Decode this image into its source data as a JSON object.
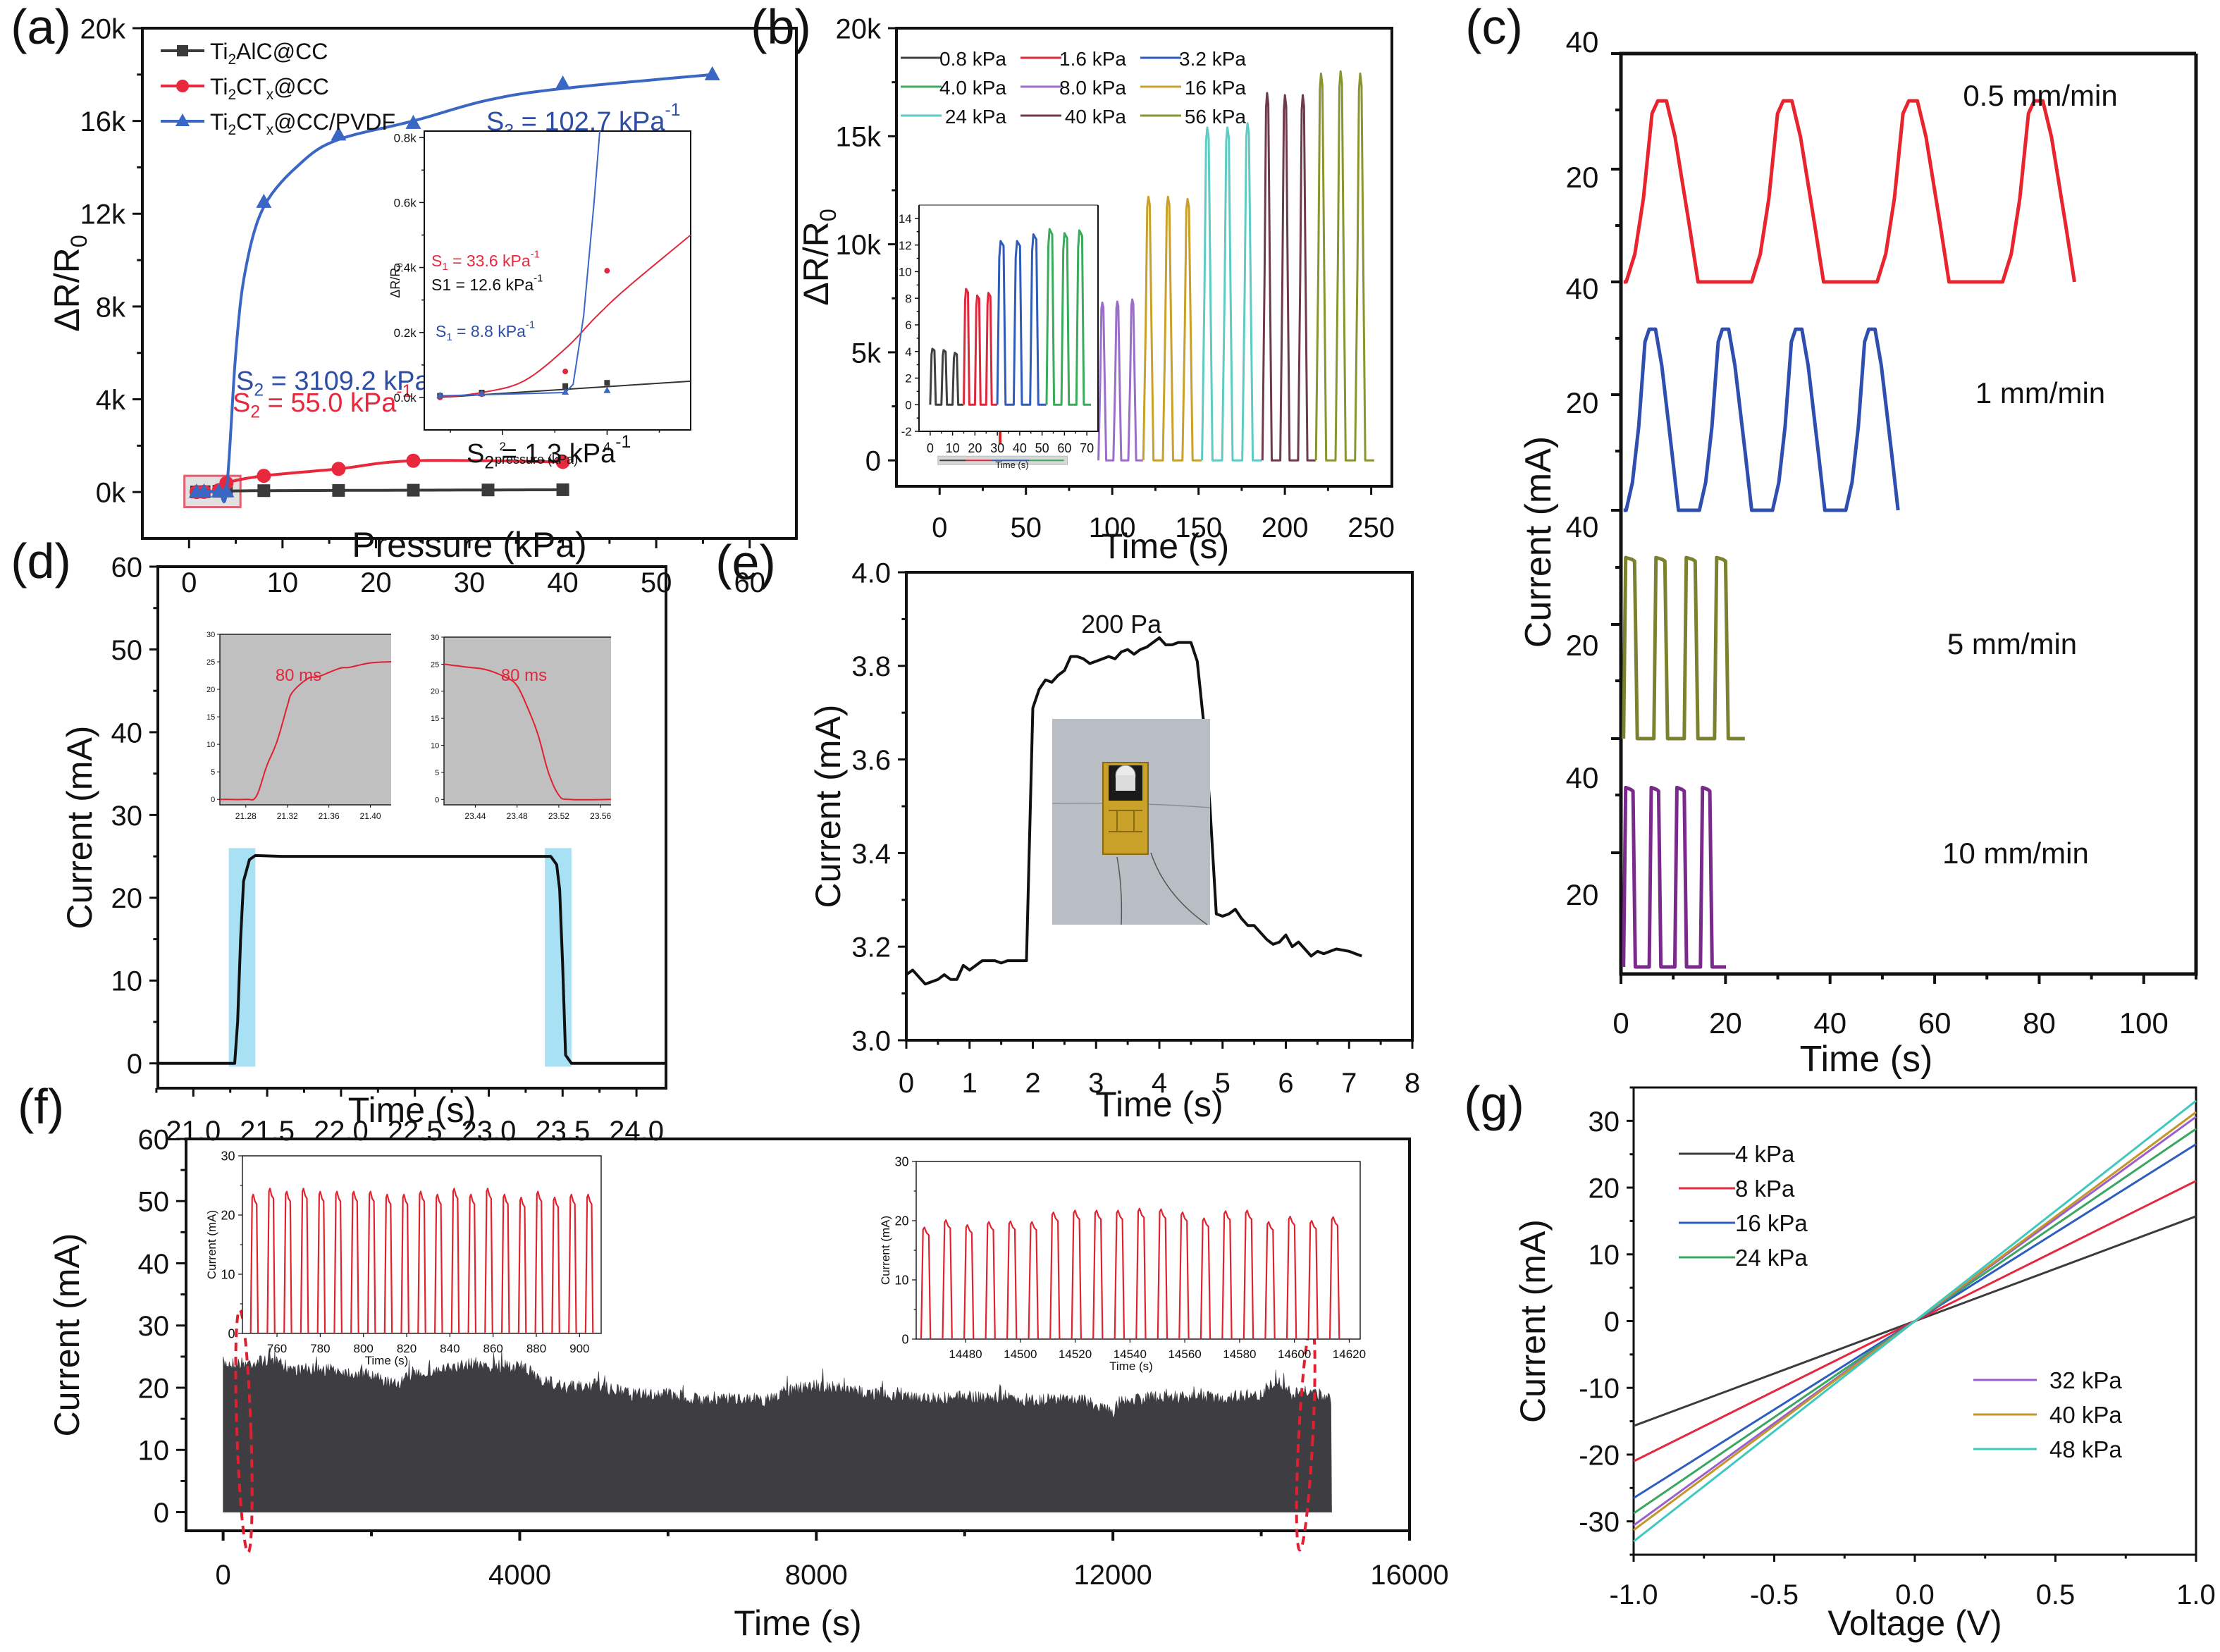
{
  "figure": {
    "panel_labels": [
      "(a)",
      "(b)",
      "(c)",
      "(d)",
      "(e)",
      "(f)",
      "(g)"
    ]
  },
  "chart_data": [
    {
      "id": "a",
      "type": "line",
      "panel_label": "(a)",
      "xlabel": "Pressure (kPa)",
      "ylabel": "ΔR/R0",
      "xlim": [
        -5,
        65
      ],
      "ylim": [
        -2000,
        20000
      ],
      "xticks": [
        0,
        10,
        20,
        30,
        40,
        50,
        60
      ],
      "yticks": [
        0,
        4000,
        8000,
        12000,
        16000,
        20000
      ],
      "ytick_labels": [
        "0k",
        "4k",
        "8k",
        "12k",
        "16k",
        "20k"
      ],
      "legend": "top-left",
      "series": [
        {
          "name": "Ti2AlC@CC",
          "color": "#3a3a3a",
          "marker": "square",
          "x": [
            0.8,
            1.6,
            3.2,
            4.0,
            8,
            16,
            24,
            32,
            40
          ],
          "y": [
            5,
            15,
            35,
            45,
            60,
            70,
            80,
            90,
            100
          ]
        },
        {
          "name": "Ti2CTx@CC",
          "color": "#e8283c",
          "marker": "circle",
          "x": [
            0.8,
            1.6,
            3.2,
            4.0,
            8,
            16,
            24,
            40
          ],
          "y": [
            0,
            10,
            80,
            390,
            700,
            1000,
            1350,
            1300
          ]
        },
        {
          "name": "Ti2CTx@CC/PVDF",
          "color": "#3a66c4",
          "marker": "triangle",
          "x": [
            0.8,
            1.6,
            3.2,
            4.0,
            8,
            16,
            24,
            40,
            56
          ],
          "y": [
            0,
            10,
            15,
            20,
            12500,
            15400,
            15900,
            17600,
            18000
          ]
        }
      ],
      "annotations": [
        {
          "text": "S3 = 102.7 kPa-1",
          "color": "#2e4ea3"
        },
        {
          "text": "S2 = 3109.2 kPa-1",
          "color": "#2e4ea3"
        },
        {
          "text": "S2 = 55.0 kPa-1",
          "color": "#e8283c"
        },
        {
          "text": "S2 = 1.3 kPa-1",
          "color": "#111111"
        }
      ],
      "inset": {
        "xlabel": "pressure (kPa)",
        "ylabel": "ΔR/R0",
        "xlim": [
          0.5,
          5.6
        ],
        "ylim": [
          -100,
          820
        ],
        "xticks": [
          2,
          4
        ],
        "yticks": [
          0,
          200,
          400,
          600,
          800
        ],
        "ytick_labels": [
          "0.0k",
          "0.2k",
          "0.4k",
          "0.6k",
          "0.8k"
        ],
        "annotations": [
          {
            "text": "S1 = 33.6 kPa-1",
            "color": "#e8283c"
          },
          {
            "text": "S1 = 12.6 kPa-1",
            "color": "#111111"
          },
          {
            "text": "S1 = 8.8 kPa-1",
            "color": "#2e4ea3"
          }
        ]
      }
    },
    {
      "id": "b",
      "type": "line",
      "panel_label": "(b)",
      "xlabel": "Time (s)",
      "ylabel": "ΔR/R0",
      "xlim": [
        -25,
        262
      ],
      "ylim": [
        -1200,
        20000
      ],
      "xticks": [
        0,
        50,
        100,
        150,
        200,
        250
      ],
      "yticks": [
        0,
        5000,
        10000,
        15000,
        20000
      ],
      "ytick_labels": [
        "0",
        "5k",
        "10k",
        "15k",
        "20k"
      ],
      "legend": "top",
      "series": [
        {
          "name": "0.8 kPa",
          "color": "#404040",
          "t_start": 0,
          "t_end": 15,
          "peaks": [
            4.2,
            4.1,
            3.9
          ]
        },
        {
          "name": "1.6 kPa",
          "color": "#e0283c",
          "t_start": 15,
          "t_end": 30,
          "peaks": [
            8.7,
            8.2,
            8.4
          ]
        },
        {
          "name": "3.2 kPa",
          "color": "#2f5cb8",
          "t_start": 30,
          "t_end": 52,
          "peaks": [
            12.3,
            12.3,
            12.8
          ]
        },
        {
          "name": "4.0 kPa",
          "color": "#3aaa5c",
          "t_start": 52,
          "t_end": 72,
          "peaks": [
            13.2,
            12.9,
            13.1
          ]
        },
        {
          "name": "8.0 kPa",
          "color": "#9b6fc9",
          "t_start": 92,
          "t_end": 118,
          "peaks": [
            7300,
            7350,
            7450
          ]
        },
        {
          "name": "16 kPa",
          "color": "#c9a02a",
          "t_start": 118,
          "t_end": 152,
          "peaks": [
            12200,
            12200,
            12100
          ]
        },
        {
          "name": "24 kPa",
          "color": "#5ecbc4",
          "t_start": 152,
          "t_end": 187,
          "peaks": [
            15400,
            15400,
            15600
          ]
        },
        {
          "name": "40 kPa",
          "color": "#6e3b4a",
          "t_start": 187,
          "t_end": 218,
          "peaks": [
            17000,
            16900,
            16900
          ]
        },
        {
          "name": "56 kPa",
          "color": "#8a9530",
          "t_start": 218,
          "t_end": 252,
          "peaks": [
            17900,
            18000,
            17900
          ]
        }
      ],
      "inset": {
        "xlabel": "Time (s)",
        "xlim": [
          -5,
          75
        ],
        "ylim": [
          -2,
          15
        ],
        "xticks": [
          0,
          10,
          20,
          30,
          40,
          50,
          60,
          70
        ],
        "yticks": [
          -2,
          0,
          2,
          4,
          6,
          8,
          10,
          12,
          14
        ]
      }
    },
    {
      "id": "c",
      "type": "line",
      "panel_label": "(c)",
      "xlabel": "Time (s)",
      "ylabel": "Current (mA)",
      "xlim": [
        0,
        110
      ],
      "xticks": [
        0,
        20,
        40,
        60,
        80,
        100
      ],
      "ytick_labels": [
        "40",
        "20",
        "40",
        "20",
        "40",
        "20",
        "40",
        "20"
      ],
      "series": [
        {
          "name": "0.5 mm/min",
          "color": "#e8242f",
          "peak_mA": 26,
          "cycles": 4,
          "period_s": 24,
          "rise_s": 11,
          "start_s": 1
        },
        {
          "name": "1 mm/min",
          "color": "#2f4fb0",
          "peak_mA": 26,
          "cycles": 4,
          "period_s": 14,
          "rise_s": 8,
          "start_s": 1
        },
        {
          "name": "5 mm/min",
          "color": "#7a8230",
          "peak_mA": 26,
          "cycles": 4,
          "period_s": 5.8,
          "rise_s": 3.5,
          "start_s": 0.5
        },
        {
          "name": "10 mm/min",
          "color": "#7a2a8a",
          "peak_mA": 26,
          "cycles": 4,
          "period_s": 4.9,
          "rise_s": 3.0,
          "start_s": 0.5
        }
      ]
    },
    {
      "id": "d",
      "type": "line",
      "panel_label": "(d)",
      "xlabel": "Time (s)",
      "ylabel": "Current (mA)",
      "xlim": [
        20.76,
        24.2
      ],
      "ylim": [
        -3,
        60
      ],
      "xticks": [
        21.0,
        21.5,
        22.0,
        22.5,
        23.0,
        23.5,
        24.0
      ],
      "yticks": [
        0,
        10,
        20,
        30,
        40,
        50,
        60
      ],
      "series": [
        {
          "name": "current",
          "color": "#111111",
          "x": [
            20.76,
            21.28,
            21.3,
            21.32,
            21.34,
            21.38,
            21.42,
            21.6,
            22.5,
            23.42,
            23.46,
            23.48,
            23.5,
            23.52,
            23.56,
            24.2
          ],
          "y": [
            0,
            0,
            5,
            15,
            22,
            24.6,
            25.1,
            25,
            25,
            25,
            24,
            21,
            12,
            1,
            0,
            0
          ]
        }
      ],
      "highlights": [
        [
          21.24,
          21.42
        ],
        [
          23.38,
          23.56
        ]
      ],
      "highlight_color": "#a8e0f4",
      "insets": [
        {
          "xlim": [
            21.255,
            21.42
          ],
          "ylim": [
            -1,
            30
          ],
          "xticks": [
            21.28,
            21.32,
            21.36,
            21.4
          ],
          "yticks": [
            0,
            5,
            10,
            15,
            20,
            25,
            30
          ],
          "x": [
            21.255,
            21.28,
            21.29,
            21.3,
            21.31,
            21.32,
            21.325,
            21.34,
            21.35,
            21.37,
            21.38,
            21.4,
            21.42
          ],
          "y": [
            0,
            0,
            0.5,
            6,
            10.5,
            17,
            19.5,
            22,
            22.3,
            23.8,
            24,
            24.8,
            25
          ],
          "annotation": "80 ms"
        },
        {
          "xlim": [
            23.41,
            23.57
          ],
          "ylim": [
            -1,
            30
          ],
          "xticks": [
            23.44,
            23.48,
            23.52,
            23.56
          ],
          "yticks": [
            0,
            5,
            10,
            15,
            20,
            25,
            30
          ],
          "x": [
            23.41,
            23.43,
            23.45,
            23.47,
            23.48,
            23.49,
            23.5,
            23.51,
            23.52,
            23.53,
            23.57
          ],
          "y": [
            25,
            24.5,
            24,
            22.5,
            21,
            17,
            12,
            5,
            0.8,
            0,
            0
          ],
          "annotation": "80 ms"
        }
      ]
    },
    {
      "id": "e",
      "type": "line",
      "panel_label": "(e)",
      "xlabel": "Time (s)",
      "ylabel": "Current (mA)",
      "xlim": [
        0,
        8
      ],
      "ylim": [
        3.0,
        4.0
      ],
      "xticks": [
        0,
        1,
        2,
        3,
        4,
        5,
        6,
        7,
        8
      ],
      "yticks": [
        3.0,
        3.2,
        3.4,
        3.6,
        3.8,
        4.0
      ],
      "annotation": "200 Pa",
      "series": [
        {
          "name": "current",
          "color": "#111111",
          "x": [
            0,
            0.1,
            0.3,
            0.5,
            0.6,
            0.7,
            0.8,
            0.9,
            1.0,
            1.2,
            1.4,
            1.5,
            1.6,
            1.8,
            1.9,
            2.0,
            2.1,
            2.2,
            2.3,
            2.4,
            2.5,
            2.6,
            2.7,
            2.8,
            2.9,
            3.0,
            3.2,
            3.3,
            3.4,
            3.5,
            3.6,
            3.7,
            3.8,
            3.9,
            4.0,
            4.1,
            4.2,
            4.3,
            4.4,
            4.5,
            4.6,
            4.7,
            4.8,
            4.9,
            5.0,
            5.1,
            5.2,
            5.3,
            5.4,
            5.5,
            5.6,
            5.7,
            5.8,
            5.9,
            6.0,
            6.1,
            6.2,
            6.3,
            6.4,
            6.5,
            6.6,
            6.7,
            6.8,
            7.0,
            7.1,
            7.2
          ],
          "y": [
            3.14,
            3.15,
            3.12,
            3.13,
            3.14,
            3.13,
            3.13,
            3.16,
            3.15,
            3.17,
            3.17,
            3.165,
            3.17,
            3.17,
            3.17,
            3.71,
            3.75,
            3.77,
            3.765,
            3.78,
            3.79,
            3.82,
            3.82,
            3.815,
            3.805,
            3.81,
            3.82,
            3.815,
            3.83,
            3.835,
            3.825,
            3.835,
            3.84,
            3.85,
            3.86,
            3.845,
            3.845,
            3.85,
            3.85,
            3.85,
            3.81,
            3.68,
            3.5,
            3.27,
            3.265,
            3.27,
            3.28,
            3.26,
            3.245,
            3.245,
            3.23,
            3.215,
            3.205,
            3.21,
            3.225,
            3.2,
            3.21,
            3.195,
            3.18,
            3.19,
            3.185,
            3.19,
            3.195,
            3.19,
            3.185,
            3.18
          ]
        }
      ],
      "inset_photo": "device photo (gold electrode on gray substrate)"
    },
    {
      "id": "f",
      "type": "area",
      "panel_label": "(f)",
      "xlabel": "Time (s)",
      "ylabel": "Current (mA)",
      "xlim": [
        -500,
        16000
      ],
      "ylim": [
        -3,
        60
      ],
      "xticks": [
        0,
        4000,
        8000,
        12000,
        16000
      ],
      "yticks": [
        0,
        10,
        20,
        30,
        40,
        50,
        60
      ],
      "fill_color": "#3d3d42",
      "envelope": {
        "x": [
          0,
          300,
          600,
          1000,
          1500,
          2000,
          2300,
          2600,
          3000,
          3400,
          3600,
          4000,
          4300,
          4600,
          5000,
          5500,
          6000,
          6500,
          7000,
          7300,
          7600,
          8000,
          8500,
          9000,
          9500,
          10000,
          10500,
          11000,
          11500,
          12000,
          12100,
          12500,
          13000,
          13500,
          14000,
          14200,
          14400,
          14700,
          14950
        ],
        "y": [
          25,
          25,
          25.5,
          24,
          24,
          23,
          21.5,
          23.5,
          24,
          25,
          24.5,
          24.5,
          22.5,
          21,
          21.5,
          20,
          20,
          19,
          19.5,
          19,
          20.5,
          21.5,
          20.5,
          20,
          19.5,
          19.5,
          19.5,
          19,
          19.5,
          17,
          19,
          19.5,
          19.5,
          19.5,
          20,
          22.5,
          20,
          20.5,
          19
        ]
      },
      "insets": [
        {
          "xlabel": "Time (s)",
          "ylabel": "Current (mA)",
          "xlim": [
            744,
            910
          ],
          "ylim": [
            0,
            30
          ],
          "xticks": [
            760,
            780,
            800,
            820,
            840,
            860,
            880,
            900
          ],
          "yticks": [
            0,
            10,
            20,
            30
          ],
          "line_color": "#e0242f",
          "period_s": 7.75,
          "first_peak_s": 749,
          "cycles": 21,
          "peaks": [
            23,
            24,
            23.5,
            24,
            23.5,
            23.5,
            23.5,
            23.5,
            23,
            23,
            23.5,
            23,
            24,
            23,
            24,
            23,
            22.5,
            23.5,
            22.5,
            23,
            23
          ]
        },
        {
          "xlabel": "Time (s)",
          "ylabel": "Current (mA)",
          "xlim": [
            14462,
            14624
          ],
          "ylim": [
            0,
            30
          ],
          "xticks": [
            14480,
            14500,
            14520,
            14540,
            14560,
            14580,
            14600,
            14620
          ],
          "yticks": [
            0,
            10,
            20,
            30
          ],
          "line_color": "#e0242f",
          "period_s": 7.85,
          "first_peak_s": 14465,
          "cycles": 20,
          "peaks": [
            18.5,
            19.7,
            18.9,
            19.4,
            19.5,
            19.4,
            21,
            21.3,
            21.3,
            21.3,
            21.6,
            21.5,
            21,
            20,
            21.2,
            21.3,
            19.4,
            20.3,
            19.6,
            20.2
          ]
        }
      ],
      "markers": [
        "dashed red ellipse near t≈300 s",
        "dashed red ellipse near t≈14600 s"
      ]
    },
    {
      "id": "g",
      "type": "line",
      "panel_label": "(g)",
      "xlabel": "Voltage (V)",
      "ylabel": "Current (mA)",
      "xlim": [
        -1.0,
        1.0
      ],
      "ylim": [
        -35,
        35
      ],
      "xticks": [
        -1.0,
        -0.5,
        0.0,
        0.5,
        1.0
      ],
      "yticks": [
        -30,
        -20,
        -10,
        0,
        10,
        20,
        30
      ],
      "legend": "top-left / bottom-right",
      "series": [
        {
          "name": "4  kPa",
          "color": "#3c3c3c",
          "slope_mA_per_V": 15.7
        },
        {
          "name": "8  kPa",
          "color": "#e4283f",
          "slope_mA_per_V": 21.0
        },
        {
          "name": "16 kPa",
          "color": "#2f5cc0",
          "slope_mA_per_V": 26.5
        },
        {
          "name": "24 kPa",
          "color": "#3aa660",
          "slope_mA_per_V": 28.8
        },
        {
          "name": "32 kPa",
          "color": "#9a5fcc",
          "slope_mA_per_V": 30.6
        },
        {
          "name": "40 kPa",
          "color": "#c4962a",
          "slope_mA_per_V": 31.3
        },
        {
          "name": "48 kPa",
          "color": "#3fc8c0",
          "slope_mA_per_V": 33.0
        }
      ]
    }
  ]
}
